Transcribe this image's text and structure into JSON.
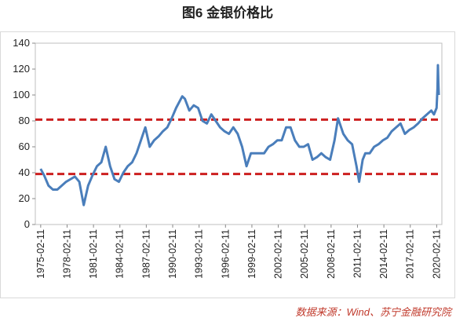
{
  "chart_data": {
    "type": "line",
    "title": "图6  金银价格比",
    "source": "数据来源：Wind、苏宁金融研究院",
    "x": [
      1975.1,
      1975.5,
      1976,
      1976.5,
      1977,
      1977.5,
      1978,
      1978.5,
      1979,
      1979.5,
      1980,
      1980.5,
      1981,
      1981.5,
      1982,
      1982.5,
      1983,
      1983.5,
      1984,
      1984.5,
      1985,
      1985.5,
      1986,
      1986.5,
      1987,
      1987.5,
      1988,
      1988.5,
      1989,
      1989.5,
      1990,
      1990.5,
      1991.2,
      1991.5,
      1992,
      1992.5,
      1993,
      1993.5,
      1994,
      1994.5,
      1995,
      1995.5,
      1996,
      1996.5,
      1997,
      1997.5,
      1998,
      1998.5,
      1999,
      1999.5,
      2000,
      2000.5,
      2001,
      2001.5,
      2002,
      2002.5,
      2003,
      2003.5,
      2004,
      2004.5,
      2005,
      2005.5,
      2006,
      2006.5,
      2007,
      2007.5,
      2008,
      2008.5,
      2008.9,
      2009.5,
      2010,
      2010.5,
      2011,
      2011.3,
      2011.7,
      2012,
      2012.5,
      2013,
      2013.5,
      2014,
      2014.5,
      2015,
      2015.5,
      2016,
      2016.5,
      2017,
      2017.5,
      2018,
      2018.5,
      2019,
      2019.5,
      2019.8,
      2020.1,
      2020.2,
      2020.25,
      2020.3,
      2020.35
    ],
    "series": [
      {
        "name": "金银价格比",
        "color": "#4a7ebb",
        "values": [
          43,
          38,
          30,
          27,
          27,
          30,
          33,
          35,
          37,
          33,
          15,
          30,
          38,
          45,
          48,
          60,
          45,
          35,
          33,
          40,
          45,
          48,
          55,
          65,
          75,
          60,
          65,
          68,
          72,
          75,
          82,
          90,
          99,
          97,
          88,
          92,
          90,
          80,
          78,
          85,
          80,
          75,
          72,
          70,
          75,
          70,
          60,
          45,
          55,
          55,
          55,
          55,
          60,
          62,
          65,
          65,
          75,
          75,
          65,
          60,
          60,
          62,
          50,
          52,
          55,
          52,
          50,
          65,
          82,
          70,
          65,
          62,
          45,
          33,
          50,
          55,
          55,
          60,
          62,
          65,
          67,
          72,
          75,
          78,
          70,
          73,
          75,
          78,
          82,
          85,
          88,
          85,
          90,
          105,
          123,
          110,
          100
        ]
      }
    ],
    "reference_lines": [
      81,
      39
    ],
    "reference_color": "#cc1f1f",
    "xlim": [
      1974.5,
      2020.7
    ],
    "xticks": [
      {
        "value": 1975.11,
        "label": "1975-02-11"
      },
      {
        "value": 1978.11,
        "label": "1978-02-11"
      },
      {
        "value": 1981.11,
        "label": "1981-02-11"
      },
      {
        "value": 1984.11,
        "label": "1984-02-11"
      },
      {
        "value": 1987.11,
        "label": "1987-02-11"
      },
      {
        "value": 1990.11,
        "label": "1990-02-11"
      },
      {
        "value": 1993.11,
        "label": "1993-02-11"
      },
      {
        "value": 1996.11,
        "label": "1996-02-11"
      },
      {
        "value": 1999.11,
        "label": "1999-02-11"
      },
      {
        "value": 2002.11,
        "label": "2002-02-11"
      },
      {
        "value": 2005.11,
        "label": "2005-02-11"
      },
      {
        "value": 2008.11,
        "label": "2008-02-11"
      },
      {
        "value": 2011.11,
        "label": "2011-02-11"
      },
      {
        "value": 2014.11,
        "label": "2014-02-11"
      },
      {
        "value": 2017.11,
        "label": "2017-02-11"
      },
      {
        "value": 2020.11,
        "label": "2020-02-11"
      }
    ],
    "ylim": [
      0,
      140
    ],
    "yticks": [
      0,
      20,
      40,
      60,
      80,
      100,
      120,
      140
    ]
  }
}
